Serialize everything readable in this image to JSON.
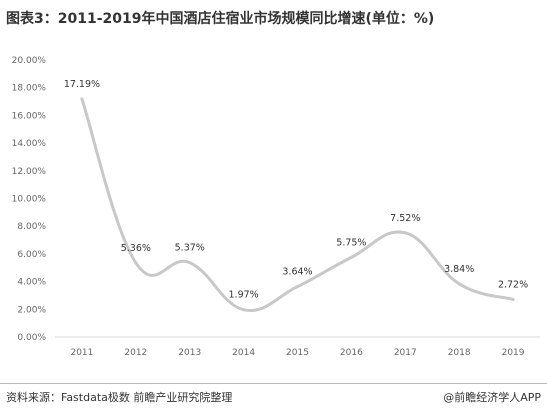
{
  "title": "图表3：2011-2019年中国酒店住宿业市场规模同比增速(单位：%)",
  "source": "资料来源：Fastdata极数 前瞻产业研究院整理",
  "brand": "@前瞻经济学人APP",
  "chart_data": {
    "type": "line",
    "title": "图表3：2011-2019年中国酒店住宿业市场规模同比增速(单位：%)",
    "xlabel": "",
    "ylabel": "",
    "categories": [
      "2011",
      "2012",
      "2013",
      "2014",
      "2015",
      "2016",
      "2017",
      "2018",
      "2019"
    ],
    "series": [
      {
        "values": [
          17.19,
          5.36,
          5.37,
          1.97,
          3.64,
          5.75,
          7.52,
          3.84,
          2.72
        ]
      }
    ],
    "data_labels": [
      "17.19%",
      "5.36%",
      "5.37%",
      "1.97%",
      "3.64%",
      "5.75%",
      "7.52%",
      "3.84%",
      "2.72%"
    ],
    "y_ticks": [
      "0.00%",
      "2.00%",
      "4.00%",
      "6.00%",
      "8.00%",
      "10.00%",
      "12.00%",
      "14.00%",
      "16.00%",
      "18.00%",
      "20.00%"
    ],
    "ylim": [
      0,
      20
    ],
    "grid": false,
    "legend": "none",
    "line_color": "#c8c8c8"
  }
}
